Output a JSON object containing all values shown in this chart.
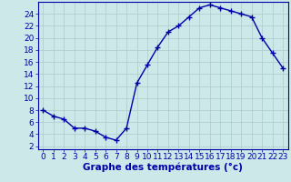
{
  "x": [
    0,
    1,
    2,
    3,
    4,
    5,
    6,
    7,
    8,
    9,
    10,
    11,
    12,
    13,
    14,
    15,
    16,
    17,
    18,
    19,
    20,
    21,
    22,
    23
  ],
  "y": [
    8,
    7,
    6.5,
    5,
    5,
    4.5,
    3.5,
    3,
    5,
    12.5,
    15.5,
    18.5,
    21,
    22,
    23.5,
    25,
    25.5,
    25,
    24.5,
    24,
    23.5,
    20,
    17.5,
    15
  ],
  "line_color": "#0000aa",
  "marker": "+",
  "bg_color": "#cce8e8",
  "grid_color": "#aacccc",
  "xlabel": "Graphe des températures (°c)",
  "xlim": [
    -0.5,
    23.5
  ],
  "ylim": [
    1.5,
    26
  ],
  "yticks": [
    2,
    4,
    6,
    8,
    10,
    12,
    14,
    16,
    18,
    20,
    22,
    24
  ],
  "xticks": [
    0,
    1,
    2,
    3,
    4,
    5,
    6,
    7,
    8,
    9,
    10,
    11,
    12,
    13,
    14,
    15,
    16,
    17,
    18,
    19,
    20,
    21,
    22,
    23
  ],
  "axis_color": "#0000aa",
  "tick_fontsize": 6.5,
  "label_fontsize": 7.5,
  "marker_size": 4,
  "line_width": 1.0
}
